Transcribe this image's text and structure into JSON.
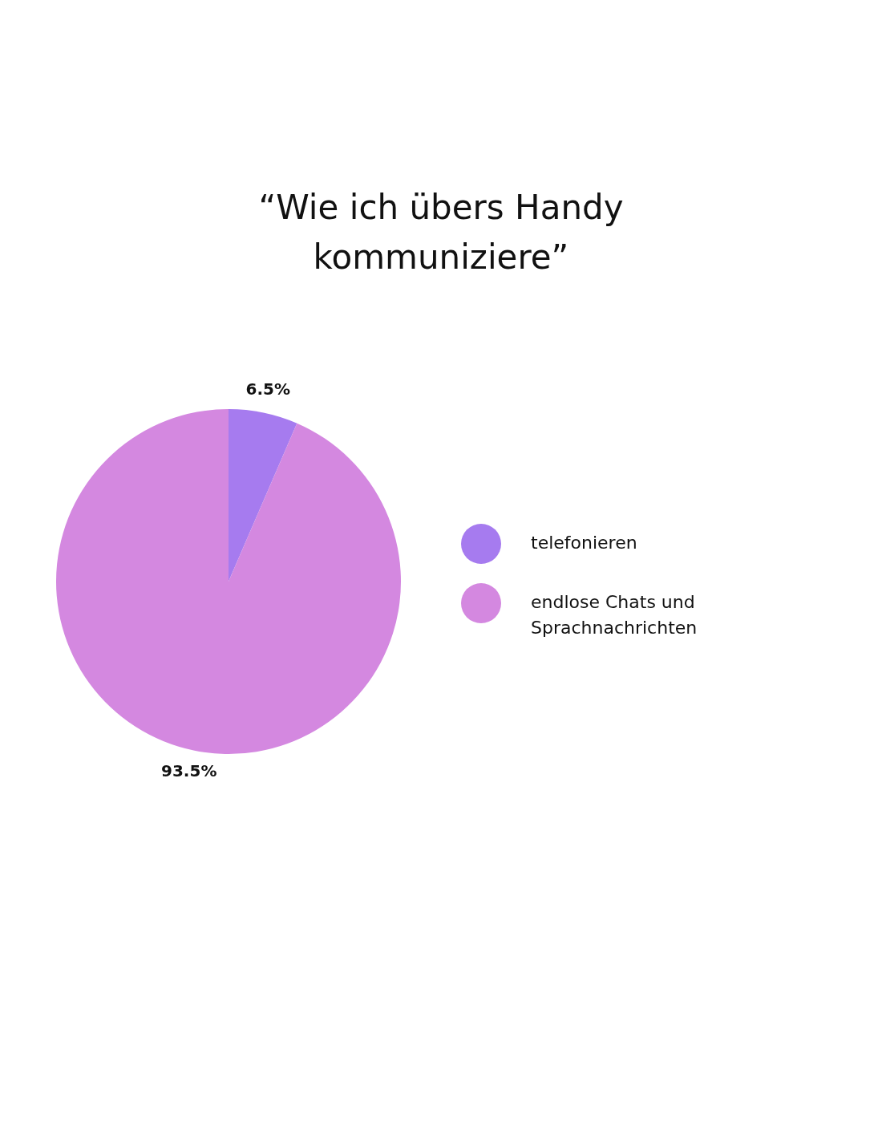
{
  "chart_data": {
    "type": "pie",
    "title": "“Wie ich übers Handy kommuniziere”",
    "categories": [
      "telefonieren",
      "endlose Chats und Sprachnachrichten"
    ],
    "values": [
      6.5,
      93.5
    ],
    "colors": [
      "#a67bef",
      "#d488e0"
    ],
    "value_labels": [
      "6.5%",
      "93.5%"
    ],
    "legend": "right"
  }
}
